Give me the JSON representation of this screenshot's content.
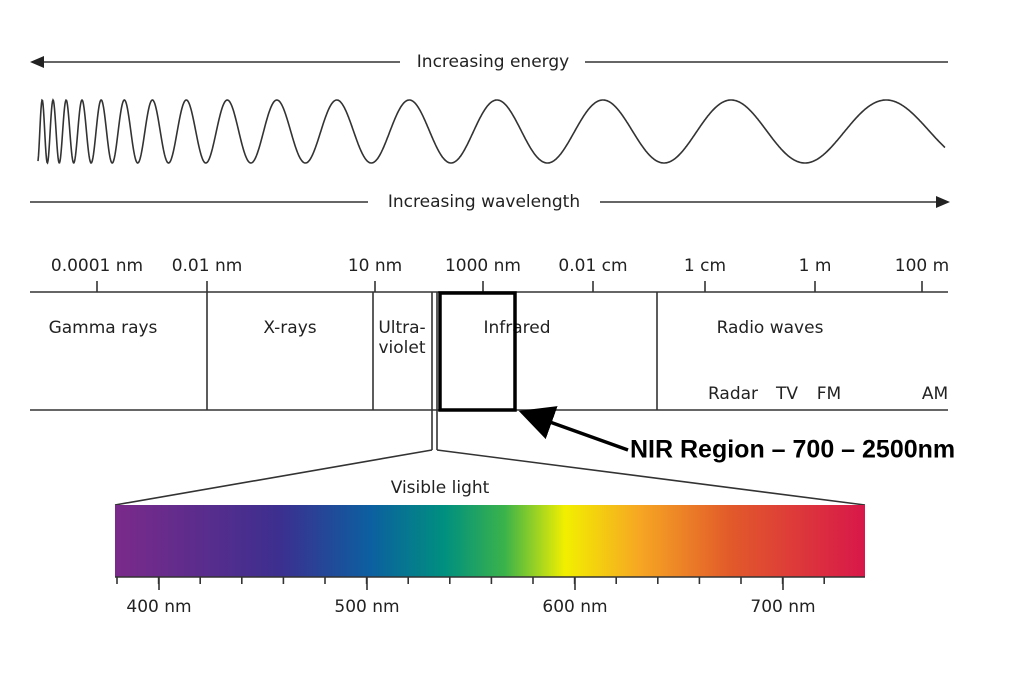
{
  "header": {
    "energy": "Increasing energy",
    "wavelength": "Increasing wavelength"
  },
  "scale": [
    "0.0001 nm",
    "0.01 nm",
    "10 nm",
    "1000 nm",
    "0.01 cm",
    "1 cm",
    "1 m",
    "100 m"
  ],
  "regions": {
    "gamma": "Gamma rays",
    "xrays": "X-rays",
    "uv": [
      "Ultra-",
      "violet"
    ],
    "infrared": "Infrared",
    "radio": "Radio waves"
  },
  "radio_bands": [
    "Radar",
    "TV",
    "FM",
    "AM"
  ],
  "annotation": "NIR Region – 700 – 2500nm",
  "visible": {
    "title": "Visible light",
    "ticks": [
      "400 nm",
      "500 nm",
      "600 nm",
      "700 nm"
    ]
  }
}
